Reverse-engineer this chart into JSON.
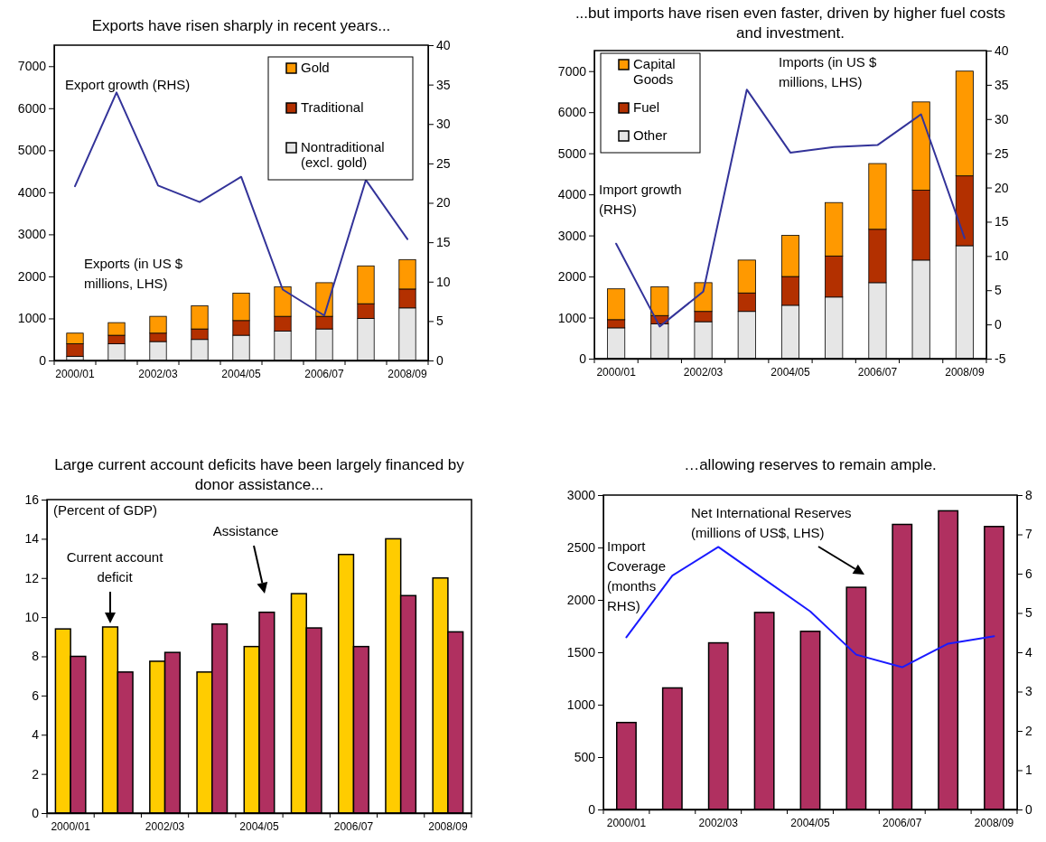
{
  "chart_data": [
    {
      "type": "bar",
      "title": "Exports have risen sharply in recent years...",
      "categories": [
        "2000/01",
        null,
        "2002/03",
        null,
        "2004/05",
        null,
        "2006/07",
        null,
        "2008/09"
      ],
      "stacked": true,
      "legend": "top right",
      "ylim": [
        0,
        7500
      ],
      "yticks": [
        0,
        1000,
        2000,
        3000,
        4000,
        5000,
        6000,
        7000
      ],
      "y2lim": [
        0,
        40
      ],
      "y2ticks": [
        0,
        5,
        10,
        15,
        20,
        25,
        30,
        35,
        40
      ],
      "series": [
        {
          "name": "Nontraditional (excl. gold)",
          "color": "#e6e6e6",
          "values": [
            100,
            400,
            450,
            500,
            600,
            700,
            750,
            1000,
            1250
          ]
        },
        {
          "name": "Traditional",
          "color": "#b33000",
          "values": [
            300,
            200,
            200,
            250,
            350,
            350,
            300,
            350,
            450
          ]
        },
        {
          "name": "Gold",
          "color": "#ff9900",
          "values": [
            250,
            300,
            400,
            550,
            650,
            700,
            800,
            900,
            700
          ]
        },
        {
          "name": "Export growth (RHS)",
          "type": "line",
          "axis": "y2",
          "color": "#333399",
          "values": [
            22.1,
            34.0,
            22.2,
            20.1,
            23.3,
            9.0,
            5.7,
            22.9,
            15.4
          ]
        }
      ],
      "annotations": [
        "Exports (in US $ millions, LHS)"
      ]
    },
    {
      "type": "bar",
      "title": "...but imports have risen even faster, driven by higher fuel costs and investment.",
      "categories": [
        "2000/01",
        null,
        "2002/03",
        null,
        "2004/05",
        null,
        "2006/07",
        null,
        "2008/09"
      ],
      "stacked": true,
      "legend": "top left",
      "ylim": [
        0,
        7500
      ],
      "yticks": [
        0,
        1000,
        2000,
        3000,
        4000,
        5000,
        6000,
        7000
      ],
      "y2lim": [
        -5,
        40
      ],
      "y2ticks": [
        -5,
        0,
        5,
        10,
        15,
        20,
        25,
        30,
        35,
        40
      ],
      "series": [
        {
          "name": "Other",
          "color": "#e6e6e6",
          "values": [
            750,
            850,
            900,
            1150,
            1300,
            1500,
            1850,
            2400,
            2750
          ]
        },
        {
          "name": "Fuel",
          "color": "#b33000",
          "values": [
            200,
            200,
            250,
            450,
            700,
            1000,
            1300,
            1700,
            1700
          ]
        },
        {
          "name": "Capital Goods",
          "color": "#ff9900",
          "values": [
            750,
            700,
            700,
            800,
            1000,
            1300,
            1600,
            2150,
            2550
          ]
        },
        {
          "name": "Import growth (RHS)",
          "type": "line",
          "axis": "y2",
          "color": "#333399",
          "values": [
            11.8,
            -0.3,
            4.8,
            34.3,
            25.1,
            25.9,
            26.2,
            30.7,
            12.6
          ]
        }
      ],
      "annotations": [
        "Imports (in US $ millions, LHS)"
      ]
    },
    {
      "type": "bar",
      "title": "Large current account deficits have been largely financed by donor assistance...",
      "categories": [
        "2000/01",
        null,
        "2002/03",
        null,
        "2004/05",
        null,
        "2006/07",
        null,
        "2008/09"
      ],
      "legend": false,
      "ylim": [
        0,
        16
      ],
      "yticks": [
        0,
        2,
        4,
        6,
        8,
        10,
        12,
        14,
        16
      ],
      "series": [
        {
          "color": "#ffcc00",
          "values": [
            9.4,
            9.5,
            7.75,
            7.2,
            8.5,
            11.2,
            13.2,
            14.0,
            12.0
          ]
        },
        {
          "color": "#b03060",
          "values": [
            8.0,
            7.2,
            8.2,
            9.65,
            10.25,
            9.45,
            8.5,
            11.1,
            9.25
          ]
        }
      ],
      "annotations": [
        "(Percent of GDP)",
        "Current account deficit",
        "Assistance"
      ]
    },
    {
      "type": "bar",
      "title": "…allowing reserves to remain ample.",
      "categories": [
        "2000/01",
        null,
        "2002/03",
        null,
        "2004/05",
        null,
        "2006/07",
        null,
        "2008/09"
      ],
      "legend": false,
      "ylim": [
        0,
        3000
      ],
      "yticks": [
        0,
        500,
        1000,
        1500,
        2000,
        2500,
        3000
      ],
      "y2lim": [
        0,
        8
      ],
      "y2ticks": [
        0,
        1,
        2,
        3,
        4,
        5,
        6,
        7,
        8
      ],
      "series": [
        {
          "color": "#b03060",
          "values": [
            830,
            1160,
            1590,
            1880,
            1700,
            2120,
            2720,
            2850,
            2700
          ]
        },
        {
          "name": "Import Coverage (months RHS)",
          "type": "line",
          "axis": "y2",
          "color": "#1a1aff",
          "values": [
            4.38,
            5.95,
            6.68,
            5.86,
            5.04,
            3.94,
            3.62,
            4.22,
            4.41
          ]
        }
      ],
      "annotations": [
        "Net International Reserves (millions of US$, LHS)"
      ]
    }
  ]
}
